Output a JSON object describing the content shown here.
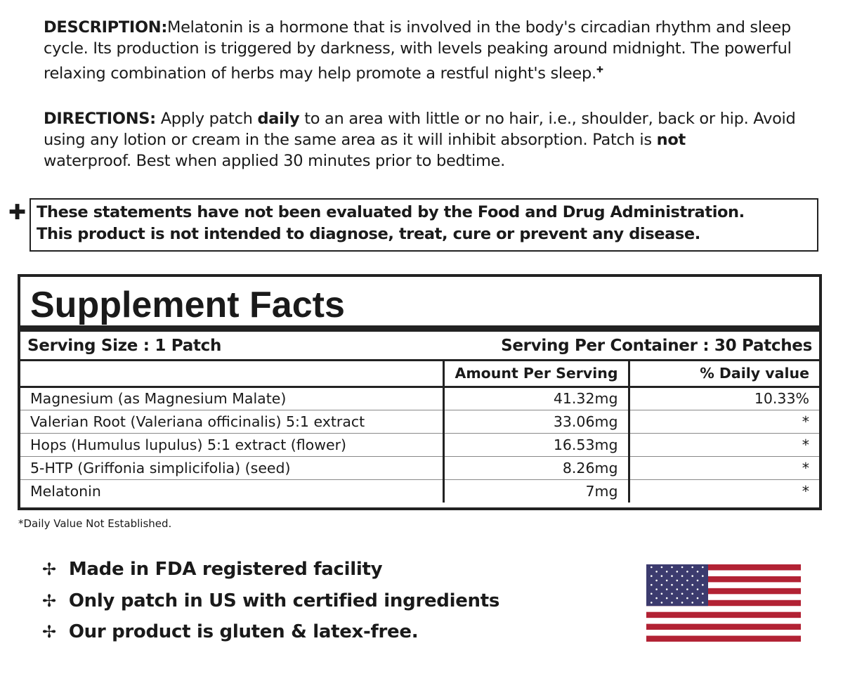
{
  "description": {
    "label": "DESCRIPTION:",
    "text": "Melatonin is a hormone that is involved in the body's circadian rhythm and sleep cycle. Its production is triggered by darkness, with levels peaking around midnight. The powerful relaxing combination of herbs may help promote a restful night's sleep.",
    "mark": "✚"
  },
  "directions": {
    "label": "DIRECTIONS:",
    "t1": "Apply patch",
    "b1": "daily",
    "t2": "to an area with little or no hair, i.e., shoulder, back or hip. Avoid using any lotion or cream in the same area as it will inhibit absorption. Patch is",
    "b2": "not",
    "t3": "waterproof. Best when applied 30 minutes prior to bedtime."
  },
  "disclaimer": {
    "mark": "✚",
    "line1": "These statements have not been evaluated by the Food and Drug Administration.",
    "line2": "This product is not intended to diagnose, treat, cure or prevent any disease."
  },
  "facts": {
    "title": "Supplement Facts",
    "serving_size": "Serving Size : 1 Patch",
    "servings_per_container": "Serving Per Container : 30 Patches",
    "headers": [
      "",
      "Amount Per Serving",
      "% Daily value"
    ],
    "rows": [
      [
        "Magnesium (as Magnesium Malate)",
        "41.32mg",
        "10.33%"
      ],
      [
        "Valerian Root (Valeriana officinalis) 5:1 extract",
        "33.06mg",
        "*"
      ],
      [
        "Hops (Humulus lupulus) 5:1 extract (flower)",
        "16.53mg",
        "*"
      ],
      [
        "5-HTP (Griffonia simplicifolia) (seed)",
        "8.26mg",
        "*"
      ],
      [
        "Melatonin",
        "7mg",
        "*"
      ]
    ],
    "footnote": "*Daily Value Not Established."
  },
  "bullets": {
    "glyph": "✢",
    "items": [
      "Made in FDA registered facility",
      "Only patch in US with certified ingredients",
      "Our product is gluten & latex-free."
    ]
  },
  "flag": {
    "icon": "us-flag-icon",
    "red": "#b22234",
    "blue": "#3c3b6e"
  }
}
